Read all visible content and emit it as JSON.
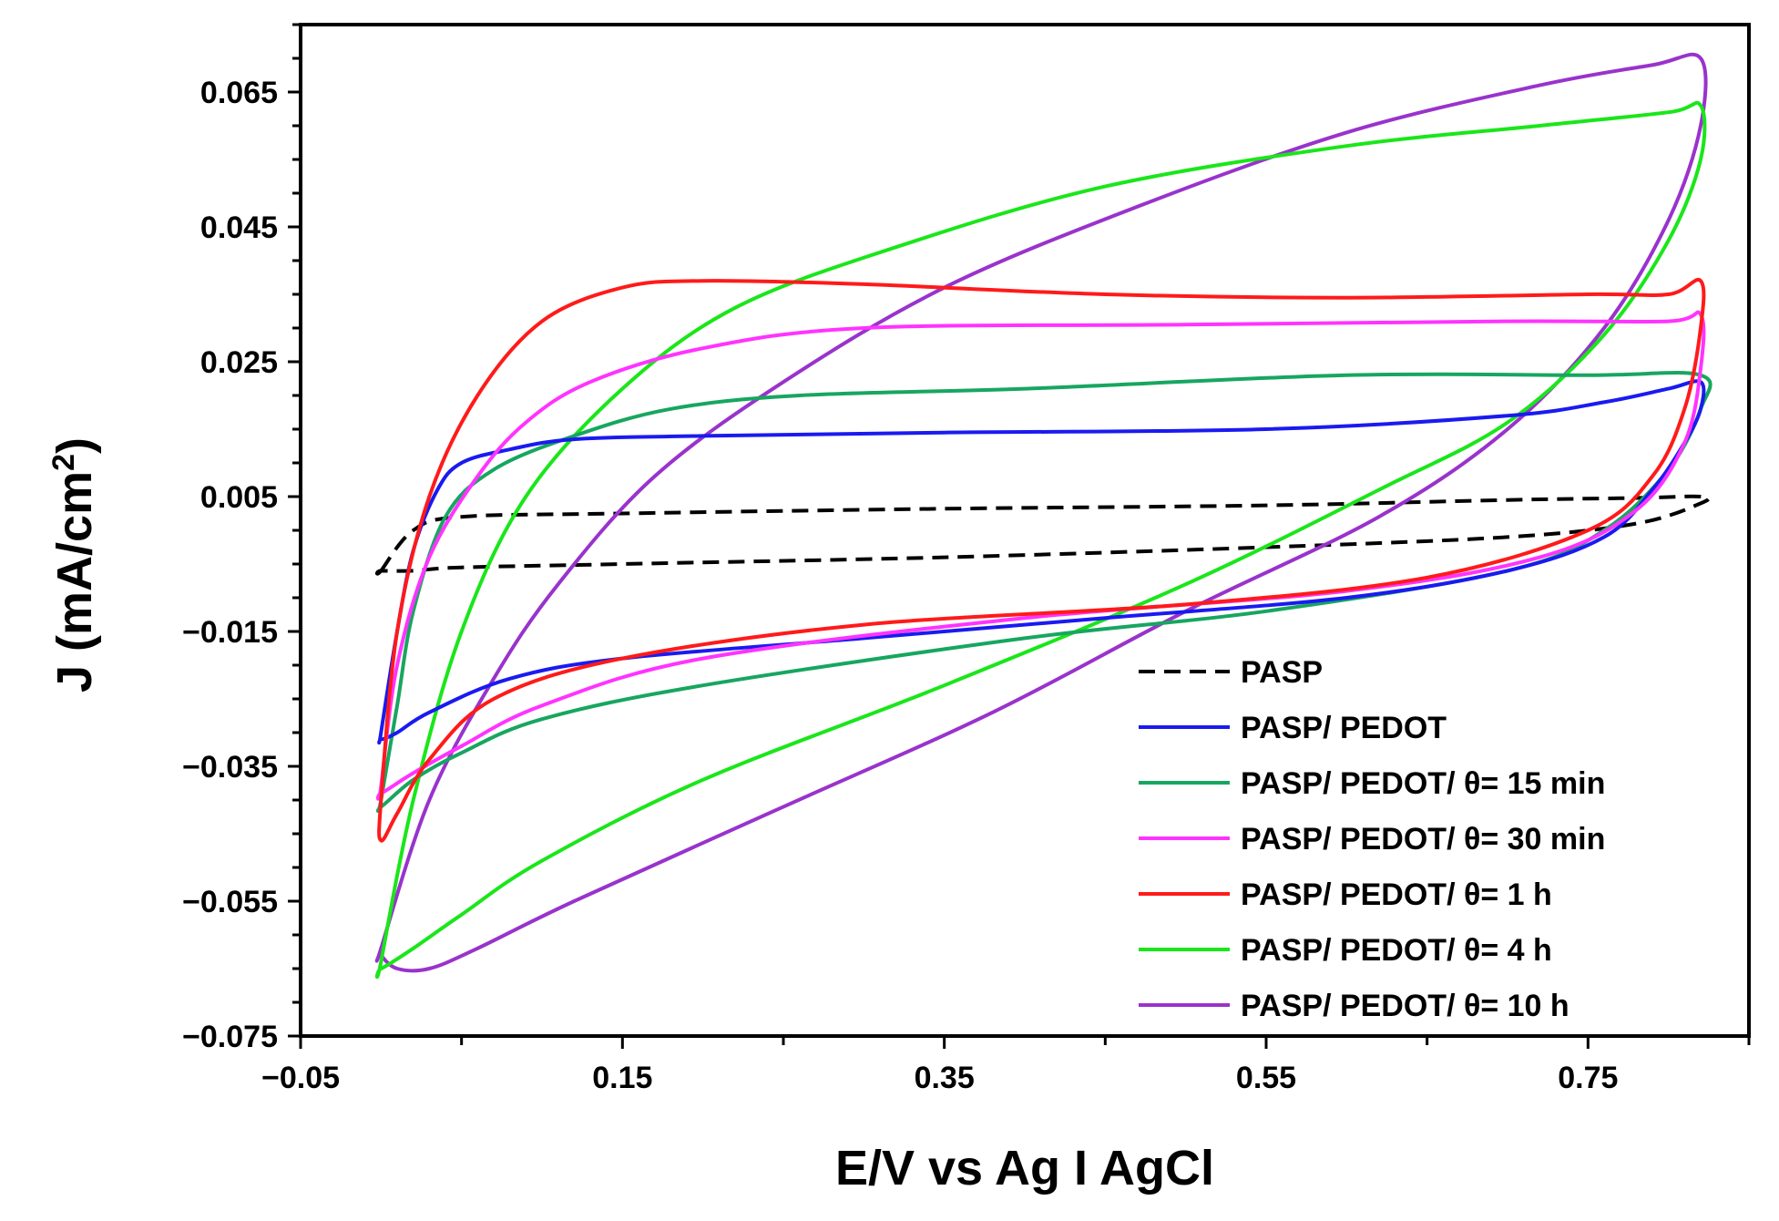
{
  "chart_data": {
    "type": "line",
    "title": "",
    "xlabel": "E/V vs Ag I AgCl",
    "ylabel": "J (mA/cm²)",
    "xlim": [
      -0.05,
      0.85
    ],
    "ylim": [
      -0.075,
      0.075
    ],
    "xticks": [
      -0.05,
      0.15,
      0.35,
      0.55,
      0.75
    ],
    "xtick_labels": [
      "−0.05",
      "0.15",
      "0.35",
      "0.55",
      "0.75"
    ],
    "yticks": [
      0.065,
      0.045,
      0.025,
      0.005,
      -0.015,
      -0.035,
      -0.055,
      -0.075
    ],
    "ytick_labels": [
      "0.065",
      "0.045",
      "0.025",
      "0.005",
      "−0.015",
      "−0.035",
      "−0.055",
      "−0.075"
    ],
    "grid": false,
    "legend_position": "bottom-right",
    "series": [
      {
        "name": "PASP",
        "color": "#000000",
        "dashed": true,
        "x": [
          0.0,
          0.02,
          0.05,
          0.15,
          0.35,
          0.55,
          0.7,
          0.78,
          0.82,
          0.82,
          0.78,
          0.7,
          0.55,
          0.35,
          0.15,
          0.05,
          0.02,
          0.0
        ],
        "y": [
          -0.006,
          0.0,
          0.002,
          0.0025,
          0.0032,
          0.0037,
          0.0045,
          0.0048,
          0.005,
          0.004,
          0.001,
          -0.001,
          -0.0025,
          -0.004,
          -0.005,
          -0.0055,
          -0.006,
          -0.006
        ]
      },
      {
        "name": "PASP/ PEDOT",
        "color": "#1a1af0",
        "dashed": false,
        "x": [
          0.0,
          0.01,
          0.02,
          0.035,
          0.05,
          0.08,
          0.12,
          0.2,
          0.35,
          0.55,
          0.7,
          0.76,
          0.8,
          0.82,
          0.82,
          0.81,
          0.79,
          0.76,
          0.7,
          0.6,
          0.45,
          0.3,
          0.15,
          0.08,
          0.03,
          0.01,
          0.0
        ],
        "y": [
          -0.03,
          -0.015,
          -0.003,
          0.006,
          0.01,
          0.012,
          0.0135,
          0.014,
          0.0145,
          0.015,
          0.017,
          0.019,
          0.021,
          0.022,
          0.018,
          0.013,
          0.006,
          -0.001,
          -0.006,
          -0.01,
          -0.013,
          -0.016,
          -0.019,
          -0.022,
          -0.027,
          -0.03,
          -0.031
        ]
      },
      {
        "name": "PASP/ PEDOT/ θ= 15 min",
        "color": "#17a660",
        "dashed": false,
        "x": [
          0.0,
          0.01,
          0.02,
          0.04,
          0.07,
          0.12,
          0.18,
          0.26,
          0.4,
          0.6,
          0.75,
          0.82,
          0.82,
          0.8,
          0.76,
          0.7,
          0.55,
          0.4,
          0.2,
          0.1,
          0.05,
          0.02,
          0.0
        ],
        "y": [
          -0.04,
          -0.026,
          -0.012,
          0.002,
          0.009,
          0.014,
          0.018,
          0.02,
          0.021,
          0.023,
          0.023,
          0.023,
          0.018,
          0.009,
          0.0,
          -0.006,
          -0.012,
          -0.016,
          -0.023,
          -0.028,
          -0.033,
          -0.037,
          -0.041
        ]
      },
      {
        "name": "PASP/ PEDOT/ θ= 30 min",
        "color": "#ff33ff",
        "dashed": false,
        "x": [
          0.0,
          0.01,
          0.03,
          0.06,
          0.09,
          0.13,
          0.2,
          0.3,
          0.5,
          0.7,
          0.8,
          0.82,
          0.82,
          0.81,
          0.78,
          0.72,
          0.6,
          0.4,
          0.2,
          0.1,
          0.05,
          0.02,
          0.0
        ],
        "y": [
          -0.038,
          -0.02,
          -0.004,
          0.008,
          0.016,
          0.022,
          0.027,
          0.03,
          0.0305,
          0.031,
          0.031,
          0.032,
          0.024,
          0.013,
          0.003,
          -0.004,
          -0.009,
          -0.013,
          -0.019,
          -0.026,
          -0.032,
          -0.036,
          -0.039
        ]
      },
      {
        "name": "PASP/ PEDOT/ θ= 1 h",
        "color": "#ff1a1a",
        "dashed": false,
        "x": [
          0.0,
          0.01,
          0.03,
          0.06,
          0.1,
          0.15,
          0.2,
          0.3,
          0.45,
          0.6,
          0.75,
          0.8,
          0.82,
          0.82,
          0.81,
          0.79,
          0.75,
          0.65,
          0.5,
          0.3,
          0.15,
          0.07,
          0.03,
          0.01,
          0.0
        ],
        "y": [
          -0.04,
          -0.015,
          0.005,
          0.02,
          0.031,
          0.036,
          0.037,
          0.0365,
          0.035,
          0.0345,
          0.035,
          0.035,
          0.037,
          0.03,
          0.018,
          0.008,
          0.0,
          -0.007,
          -0.011,
          -0.014,
          -0.019,
          -0.025,
          -0.034,
          -0.042,
          -0.046
        ]
      },
      {
        "name": "PASP/ PEDOT/ θ= 4 h",
        "color": "#1ae61a",
        "dashed": false,
        "x": [
          0.0,
          0.02,
          0.05,
          0.09,
          0.15,
          0.22,
          0.32,
          0.45,
          0.6,
          0.72,
          0.8,
          0.82,
          0.82,
          0.8,
          0.76,
          0.7,
          0.62,
          0.5,
          0.35,
          0.2,
          0.1,
          0.05,
          0.02,
          0.0
        ],
        "y": [
          -0.064,
          -0.04,
          -0.015,
          0.005,
          0.021,
          0.033,
          0.042,
          0.051,
          0.057,
          0.06,
          0.062,
          0.063,
          0.055,
          0.043,
          0.029,
          0.016,
          0.006,
          -0.008,
          -0.023,
          -0.037,
          -0.049,
          -0.057,
          -0.062,
          -0.065
        ]
      },
      {
        "name": "PASP/ PEDOT/ θ= 10 h",
        "color": "#9933cc",
        "dashed": false,
        "x": [
          0.0,
          0.03,
          0.07,
          0.11,
          0.17,
          0.25,
          0.35,
          0.47,
          0.6,
          0.72,
          0.79,
          0.82,
          0.82,
          0.8,
          0.76,
          0.7,
          0.62,
          0.5,
          0.38,
          0.25,
          0.12,
          0.06,
          0.03,
          0.01,
          0.0
        ],
        "y": [
          -0.062,
          -0.04,
          -0.022,
          -0.008,
          0.008,
          0.022,
          0.036,
          0.048,
          0.059,
          0.066,
          0.069,
          0.07,
          0.06,
          0.046,
          0.03,
          0.015,
          0.002,
          -0.012,
          -0.027,
          -0.041,
          -0.055,
          -0.062,
          -0.065,
          -0.065,
          -0.063
        ]
      }
    ]
  }
}
